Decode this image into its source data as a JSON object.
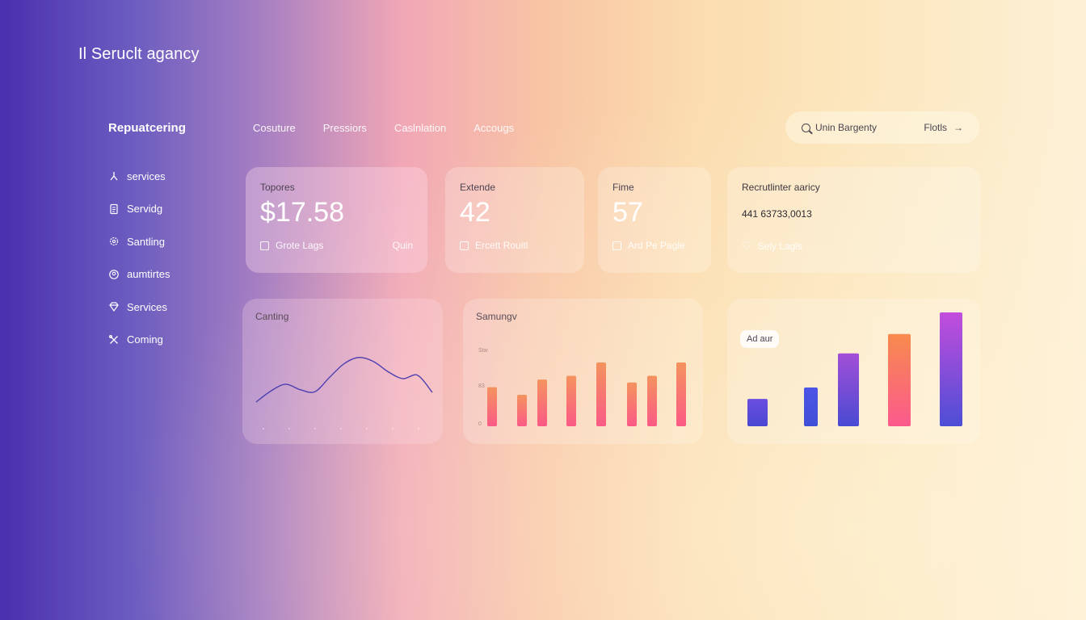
{
  "app": {
    "brand": "Il Seruclt agancy"
  },
  "sidebar": {
    "title": "Repuatcering",
    "items": [
      {
        "label": "services",
        "icon": "tree-icon"
      },
      {
        "label": "Servidg",
        "icon": "document-icon"
      },
      {
        "label": "Santling",
        "icon": "gear-icon"
      },
      {
        "label": "aumtirtes",
        "icon": "badge-icon"
      },
      {
        "label": "Services",
        "icon": "diamond-icon"
      },
      {
        "label": "Coming",
        "icon": "tools-icon"
      }
    ]
  },
  "nav": {
    "items": [
      "Cosuture",
      "Pressiors",
      "Caslnlation",
      "Accougs"
    ]
  },
  "search": {
    "query": "Unin Bargenty",
    "filter_label": "Flotls"
  },
  "cards": [
    {
      "label": "Topores",
      "value": "$17.58",
      "footer": "Grote Lags",
      "extra": "Quin"
    },
    {
      "label": "Extende",
      "value": "42",
      "footer": "Ercett Rouitl"
    },
    {
      "label": "Fime",
      "value": "57",
      "footer": "Ard Pe Pagle"
    },
    {
      "label": "Recrutlinter aaricy",
      "value": "441 63733,0013",
      "footer": "Sely Lagls"
    }
  ],
  "charts": {
    "line_title": "Canting",
    "bar_title": "Samungv",
    "bar_y_ticks": [
      "Stw",
      "83",
      "0"
    ],
    "tag_label": "Ad aur"
  },
  "colors": {
    "line_stroke": "#4e3fb0",
    "bar_top": "#f4935e",
    "bar_bottom": "#fb5a86"
  },
  "chart_data": [
    {
      "type": "line",
      "title": "Canting",
      "x": [
        0,
        1,
        2,
        3,
        4,
        5,
        6,
        7,
        8,
        9,
        10,
        11,
        12
      ],
      "values": [
        2.0,
        3.6,
        4.6,
        3.8,
        3.5,
        5.6,
        7.6,
        8.5,
        7.9,
        6.4,
        5.4,
        5.9,
        3.4
      ],
      "ylim": [
        0,
        10
      ]
    },
    {
      "type": "bar",
      "title": "Samungv",
      "values": [
        41,
        33,
        49,
        53,
        67,
        46,
        53,
        67
      ],
      "ylim": [
        0,
        100
      ]
    },
    {
      "type": "bar",
      "annotation": "Ad aur",
      "values": [
        24,
        34,
        64,
        81,
        100
      ],
      "ylim": [
        0,
        100
      ],
      "series_colors": [
        [
          "#6a4ee0",
          "#4a47d2"
        ],
        [
          "#4d55e6",
          "#3f4fd6"
        ],
        [
          "#a34fd6",
          "#4a4ad4"
        ],
        [
          "#f88a4e",
          "#fb5a8c"
        ],
        [
          "#c34ddc",
          "#4d4ed6"
        ]
      ]
    }
  ]
}
